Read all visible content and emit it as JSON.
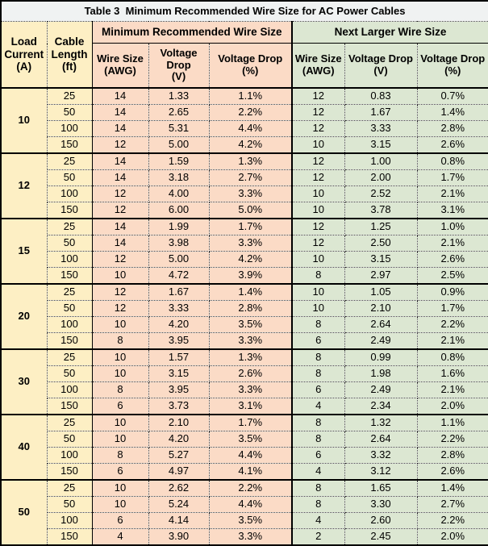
{
  "title": "Table 3  Minimum Recommended Wire Size for AC Power Cables",
  "colors": {
    "title_bg": "#f0f2f2",
    "left_columns_bg": "#fdefc4",
    "min_section_bg": "#fbdbc6",
    "next_section_bg": "#dce7d2",
    "border": "#000000"
  },
  "header": {
    "load_current": "Load Current (A)",
    "cable_length": "Cable Length (ft)",
    "min_group": "Minimum Recommended Wire Size",
    "next_group": "Next Larger Wire Size",
    "sub_columns": [
      {
        "line1": "Wire Size",
        "line2": "(AWG)"
      },
      {
        "line1": "Voltage Drop",
        "line2": "(V)"
      },
      {
        "line1": "Voltage Drop",
        "line2": "(%)"
      }
    ]
  },
  "groups": [
    {
      "load_current": "10",
      "rows": [
        {
          "length": "25",
          "min": [
            "14",
            "1.33",
            "1.1%"
          ],
          "next": [
            "12",
            "0.83",
            "0.7%"
          ]
        },
        {
          "length": "50",
          "min": [
            "14",
            "2.65",
            "2.2%"
          ],
          "next": [
            "12",
            "1.67",
            "1.4%"
          ]
        },
        {
          "length": "100",
          "min": [
            "14",
            "5.31",
            "4.4%"
          ],
          "next": [
            "12",
            "3.33",
            "2.8%"
          ]
        },
        {
          "length": "150",
          "min": [
            "12",
            "5.00",
            "4.2%"
          ],
          "next": [
            "10",
            "3.15",
            "2.6%"
          ]
        }
      ]
    },
    {
      "load_current": "12",
      "rows": [
        {
          "length": "25",
          "min": [
            "14",
            "1.59",
            "1.3%"
          ],
          "next": [
            "12",
            "1.00",
            "0.8%"
          ]
        },
        {
          "length": "50",
          "min": [
            "14",
            "3.18",
            "2.7%"
          ],
          "next": [
            "12",
            "2.00",
            "1.7%"
          ]
        },
        {
          "length": "100",
          "min": [
            "12",
            "4.00",
            "3.3%"
          ],
          "next": [
            "10",
            "2.52",
            "2.1%"
          ]
        },
        {
          "length": "150",
          "min": [
            "12",
            "6.00",
            "5.0%"
          ],
          "next": [
            "10",
            "3.78",
            "3.1%"
          ]
        }
      ]
    },
    {
      "load_current": "15",
      "rows": [
        {
          "length": "25",
          "min": [
            "14",
            "1.99",
            "1.7%"
          ],
          "next": [
            "12",
            "1.25",
            "1.0%"
          ]
        },
        {
          "length": "50",
          "min": [
            "14",
            "3.98",
            "3.3%"
          ],
          "next": [
            "12",
            "2.50",
            "2.1%"
          ]
        },
        {
          "length": "100",
          "min": [
            "12",
            "5.00",
            "4.2%"
          ],
          "next": [
            "10",
            "3.15",
            "2.6%"
          ]
        },
        {
          "length": "150",
          "min": [
            "10",
            "4.72",
            "3.9%"
          ],
          "next": [
            "8",
            "2.97",
            "2.5%"
          ]
        }
      ]
    },
    {
      "load_current": "20",
      "rows": [
        {
          "length": "25",
          "min": [
            "12",
            "1.67",
            "1.4%"
          ],
          "next": [
            "10",
            "1.05",
            "0.9%"
          ]
        },
        {
          "length": "50",
          "min": [
            "12",
            "3.33",
            "2.8%"
          ],
          "next": [
            "10",
            "2.10",
            "1.7%"
          ]
        },
        {
          "length": "100",
          "min": [
            "10",
            "4.20",
            "3.5%"
          ],
          "next": [
            "8",
            "2.64",
            "2.2%"
          ]
        },
        {
          "length": "150",
          "min": [
            "8",
            "3.95",
            "3.3%"
          ],
          "next": [
            "6",
            "2.49",
            "2.1%"
          ]
        }
      ]
    },
    {
      "load_current": "30",
      "rows": [
        {
          "length": "25",
          "min": [
            "10",
            "1.57",
            "1.3%"
          ],
          "next": [
            "8",
            "0.99",
            "0.8%"
          ]
        },
        {
          "length": "50",
          "min": [
            "10",
            "3.15",
            "2.6%"
          ],
          "next": [
            "8",
            "1.98",
            "1.6%"
          ]
        },
        {
          "length": "100",
          "min": [
            "8",
            "3.95",
            "3.3%"
          ],
          "next": [
            "6",
            "2.49",
            "2.1%"
          ]
        },
        {
          "length": "150",
          "min": [
            "6",
            "3.73",
            "3.1%"
          ],
          "next": [
            "4",
            "2.34",
            "2.0%"
          ]
        }
      ]
    },
    {
      "load_current": "40",
      "rows": [
        {
          "length": "25",
          "min": [
            "10",
            "2.10",
            "1.7%"
          ],
          "next": [
            "8",
            "1.32",
            "1.1%"
          ]
        },
        {
          "length": "50",
          "min": [
            "10",
            "4.20",
            "3.5%"
          ],
          "next": [
            "8",
            "2.64",
            "2.2%"
          ]
        },
        {
          "length": "100",
          "min": [
            "8",
            "5.27",
            "4.4%"
          ],
          "next": [
            "6",
            "3.32",
            "2.8%"
          ]
        },
        {
          "length": "150",
          "min": [
            "6",
            "4.97",
            "4.1%"
          ],
          "next": [
            "4",
            "3.12",
            "2.6%"
          ]
        }
      ]
    },
    {
      "load_current": "50",
      "rows": [
        {
          "length": "25",
          "min": [
            "10",
            "2.62",
            "2.2%"
          ],
          "next": [
            "8",
            "1.65",
            "1.4%"
          ]
        },
        {
          "length": "50",
          "min": [
            "10",
            "5.24",
            "4.4%"
          ],
          "next": [
            "8",
            "3.30",
            "2.7%"
          ]
        },
        {
          "length": "100",
          "min": [
            "6",
            "4.14",
            "3.5%"
          ],
          "next": [
            "4",
            "2.60",
            "2.2%"
          ]
        },
        {
          "length": "150",
          "min": [
            "4",
            "3.90",
            "3.3%"
          ],
          "next": [
            "2",
            "2.45",
            "2.0%"
          ]
        }
      ]
    }
  ]
}
